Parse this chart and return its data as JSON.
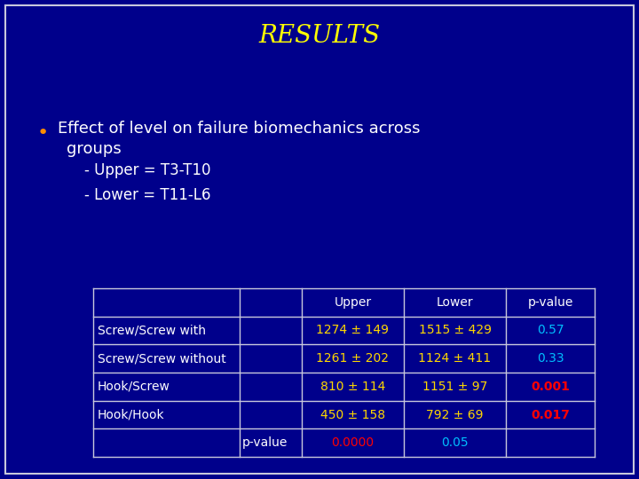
{
  "title": "RESULTS",
  "title_color": "#FFFF00",
  "background_color": "#00008B",
  "border_color": "#C8C8DC",
  "bullet_text_line1": "Effect of level on failure biomechanics across",
  "bullet_text_line2": "groups",
  "sub_bullet1": "- Upper = T3-T10",
  "sub_bullet2": "- Lower = T11-L6",
  "bullet_color": "#FF8C00",
  "text_color": "#FFFFFF",
  "table_header": [
    "",
    "",
    "Upper",
    "Lower",
    "p-value"
  ],
  "table_rows": [
    [
      "Screw/Screw with",
      "",
      "1274 ± 149",
      "1515 ± 429",
      "0.57"
    ],
    [
      "Screw/Screw without",
      "",
      "1261 ± 202",
      "1124 ± 411",
      "0.33"
    ],
    [
      "Hook/Screw",
      "",
      "810 ± 114",
      "1151 ± 97",
      "0.001"
    ],
    [
      "Hook/Hook",
      "",
      "450 ± 158",
      "792 ± 69",
      "0.017"
    ],
    [
      "",
      "p-value",
      "0.0000",
      "0.05",
      ""
    ]
  ],
  "upper_col_color": "#FFD700",
  "lower_col_color": "#FFD700",
  "pvalue_sig_color": "#FF0000",
  "pvalue_ns_color": "#00BFFF",
  "pvalue_row_upper_color": "#FF0000",
  "pvalue_row_lower_color": "#00BFFF",
  "row_label_color": "#FFFFFF",
  "header_text_color": "#FFFFFF",
  "table_bg": "#00008B",
  "table_border_color": "#C8C8DC",
  "title_fontsize": 20,
  "body_fontsize": 13,
  "sub_fontsize": 12,
  "table_fontsize": 10
}
